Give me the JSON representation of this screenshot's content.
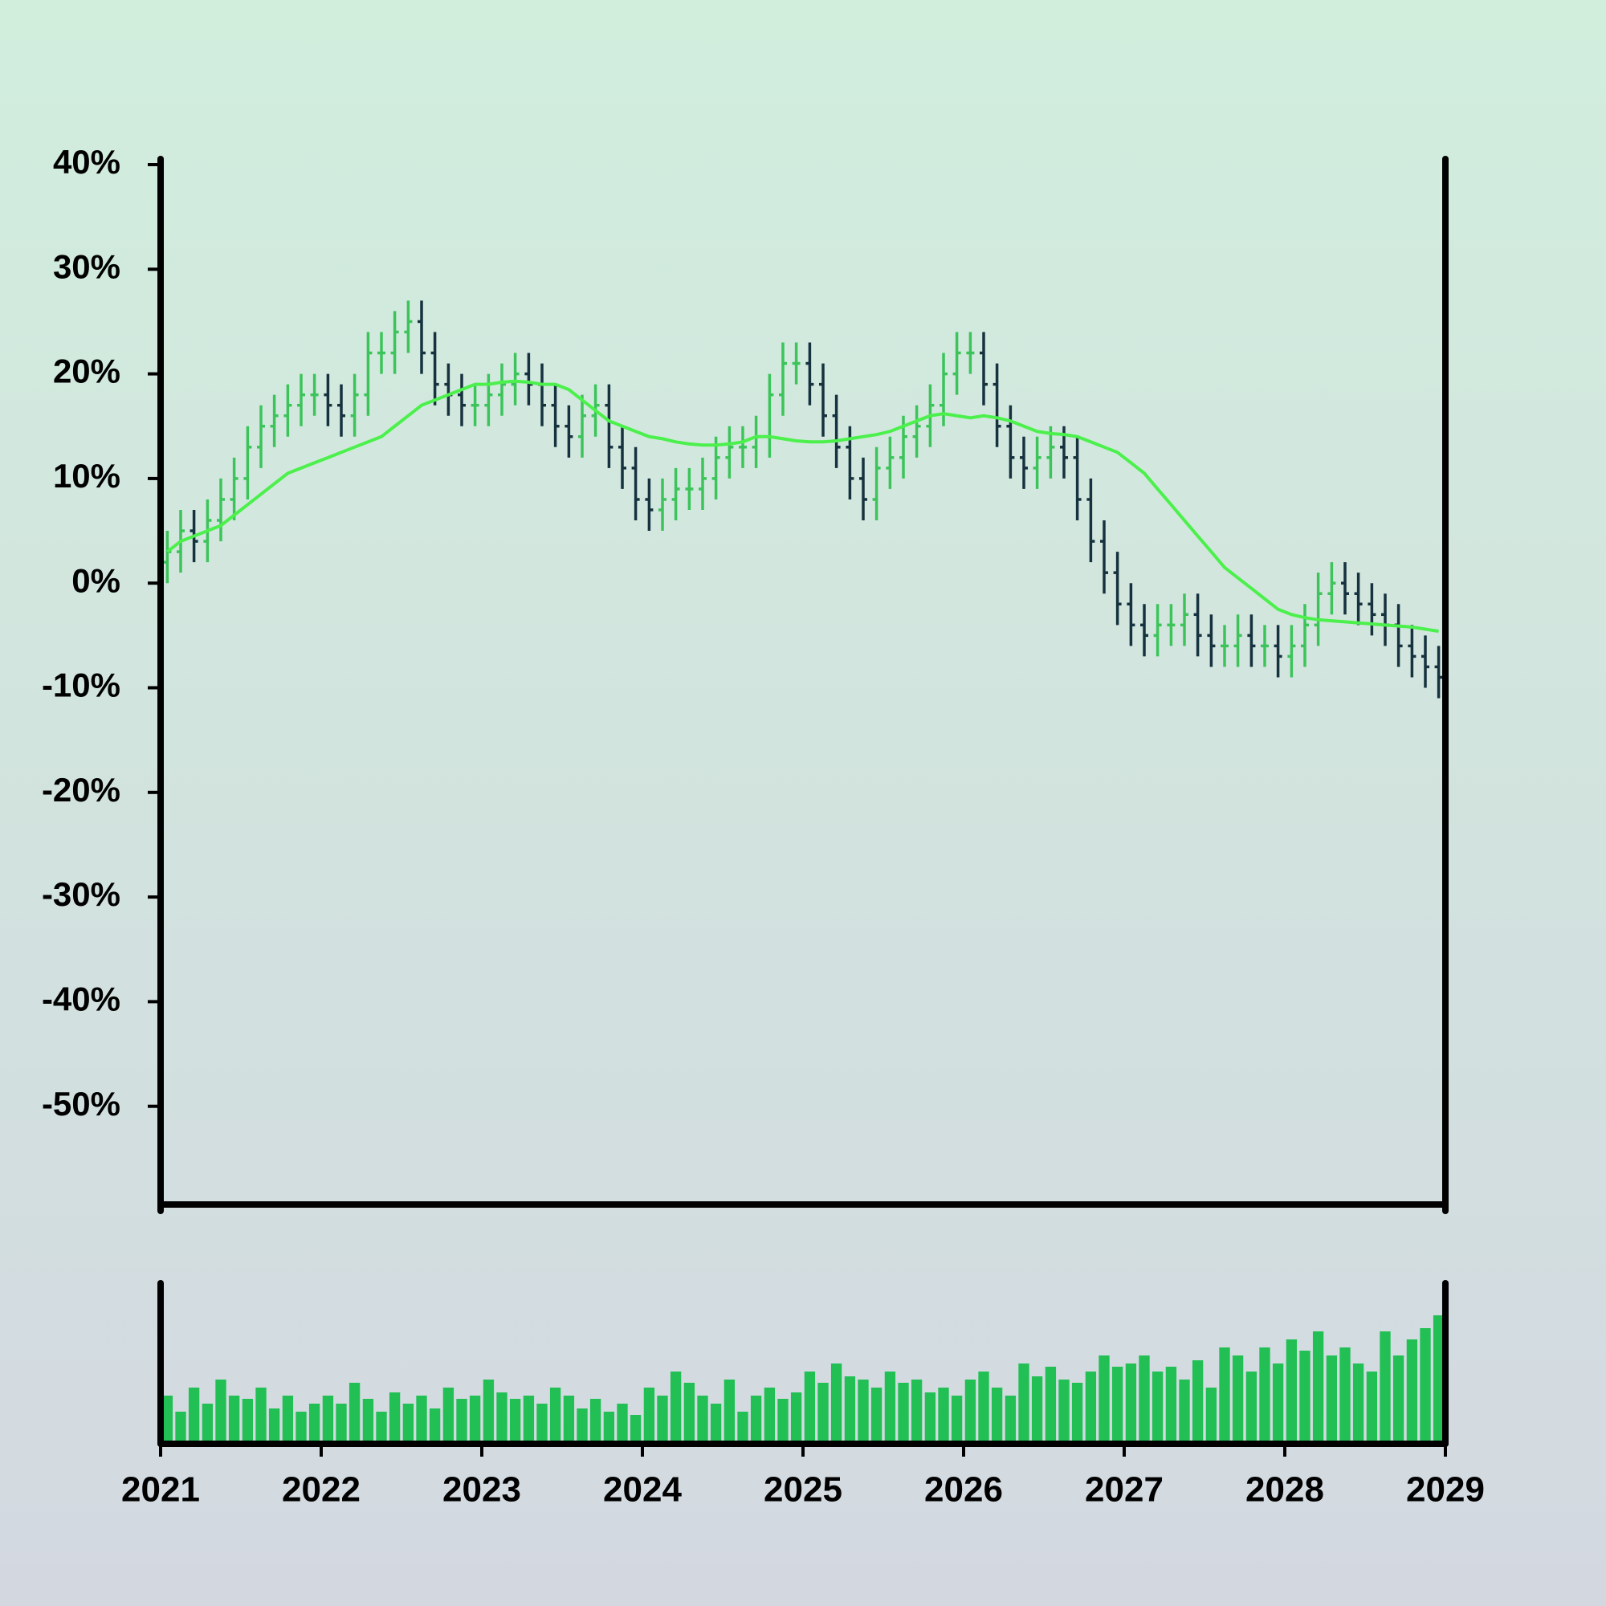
{
  "chart_data": {
    "type": "ohlc",
    "x": [
      2021.042,
      2021.125,
      2021.208,
      2021.292,
      2021.375,
      2021.458,
      2021.542,
      2021.625,
      2021.708,
      2021.792,
      2021.875,
      2021.958,
      2022.042,
      2022.125,
      2022.208,
      2022.292,
      2022.375,
      2022.458,
      2022.542,
      2022.625,
      2022.708,
      2022.792,
      2022.875,
      2022.958,
      2023.042,
      2023.125,
      2023.208,
      2023.292,
      2023.375,
      2023.458,
      2023.542,
      2023.625,
      2023.708,
      2023.792,
      2023.875,
      2023.958,
      2024.042,
      2024.125,
      2024.208,
      2024.292,
      2024.375,
      2024.458,
      2024.542,
      2024.625,
      2024.708,
      2024.792,
      2024.875,
      2024.958,
      2025.042,
      2025.125,
      2025.208,
      2025.292,
      2025.375,
      2025.458,
      2025.542,
      2025.625,
      2025.708,
      2025.792,
      2025.875,
      2025.958,
      2026.042,
      2026.125,
      2026.208,
      2026.292,
      2026.375,
      2026.458,
      2026.542,
      2026.625,
      2026.708,
      2026.792,
      2026.875,
      2026.958,
      2027.042,
      2027.125,
      2027.208,
      2027.292,
      2027.375,
      2027.458,
      2027.542,
      2027.625,
      2027.708,
      2027.792,
      2027.875,
      2027.958,
      2028.042,
      2028.125,
      2028.208,
      2028.292,
      2028.375,
      2028.458,
      2028.542,
      2028.625,
      2028.708,
      2028.792,
      2028.875,
      2028.958
    ],
    "open": [
      2,
      3,
      5,
      4,
      6,
      8,
      10,
      13,
      15,
      16,
      17,
      18,
      18,
      17,
      16,
      18,
      22,
      22,
      24,
      25,
      22,
      19,
      18,
      17,
      17,
      18,
      19,
      20,
      19,
      17,
      15,
      14,
      16,
      17,
      13,
      11,
      8,
      7,
      8,
      9,
      9,
      10,
      12,
      13,
      13,
      14,
      18,
      21,
      21,
      19,
      16,
      13,
      10,
      8,
      11,
      12,
      14,
      15,
      17,
      20,
      22,
      22,
      19,
      15,
      12,
      11,
      12,
      13,
      12,
      8,
      4,
      1,
      -2,
      -4,
      -5,
      -4,
      -4,
      -3,
      -5,
      -6,
      -6,
      -5,
      -6,
      -6,
      -7,
      -6,
      -4,
      -1,
      0,
      -1,
      -2,
      -3,
      -4,
      -6,
      -7,
      -8
    ],
    "high": [
      5,
      7,
      7,
      8,
      10,
      12,
      15,
      17,
      18,
      19,
      20,
      20,
      20,
      19,
      20,
      24,
      24,
      26,
      27,
      27,
      24,
      21,
      20,
      19,
      20,
      21,
      22,
      22,
      21,
      19,
      17,
      18,
      19,
      19,
      15,
      13,
      10,
      10,
      11,
      11,
      12,
      14,
      15,
      15,
      16,
      20,
      23,
      23,
      23,
      21,
      18,
      15,
      12,
      13,
      14,
      16,
      17,
      19,
      22,
      24,
      24,
      24,
      21,
      17,
      14,
      14,
      15,
      15,
      14,
      10,
      6,
      3,
      0,
      -2,
      -2,
      -2,
      -1,
      -1,
      -3,
      -4,
      -3,
      -3,
      -4,
      -4,
      -4,
      -2,
      1,
      2,
      2,
      1,
      0,
      -1,
      -2,
      -4,
      -5,
      -6
    ],
    "low": [
      0,
      1,
      2,
      2,
      4,
      6,
      8,
      11,
      13,
      14,
      15,
      16,
      15,
      14,
      14,
      16,
      20,
      20,
      22,
      20,
      17,
      16,
      15,
      15,
      15,
      16,
      17,
      17,
      15,
      13,
      12,
      12,
      14,
      11,
      9,
      6,
      5,
      5,
      6,
      7,
      7,
      8,
      10,
      11,
      11,
      12,
      16,
      19,
      17,
      14,
      11,
      8,
      6,
      6,
      9,
      10,
      12,
      13,
      15,
      18,
      20,
      17,
      13,
      10,
      9,
      9,
      10,
      10,
      6,
      2,
      -1,
      -4,
      -6,
      -7,
      -7,
      -6,
      -6,
      -7,
      -8,
      -8,
      -8,
      -8,
      -8,
      -9,
      -9,
      -8,
      -6,
      -3,
      -3,
      -4,
      -5,
      -6,
      -8,
      -9,
      -10,
      -11
    ],
    "close": [
      3,
      5,
      4,
      6,
      8,
      10,
      13,
      15,
      16,
      17,
      18,
      18,
      17,
      16,
      18,
      22,
      22,
      24,
      25,
      22,
      19,
      18,
      17,
      17,
      18,
      19,
      20,
      19,
      17,
      15,
      14,
      16,
      17,
      13,
      11,
      8,
      7,
      8,
      9,
      9,
      10,
      12,
      13,
      13,
      14,
      18,
      21,
      21,
      19,
      16,
      13,
      10,
      8,
      11,
      12,
      14,
      15,
      17,
      20,
      22,
      22,
      19,
      15,
      12,
      11,
      12,
      13,
      12,
      8,
      4,
      1,
      -2,
      -4,
      -5,
      -4,
      -4,
      -3,
      -5,
      -6,
      -6,
      -5,
      -6,
      -6,
      -7,
      -6,
      -4,
      -1,
      0,
      -1,
      -2,
      -3,
      -4,
      -6,
      -7,
      -8,
      -9
    ],
    "moving_average": [
      3,
      4,
      4.5,
      5,
      5.5,
      6.5,
      7.5,
      8.5,
      9.5,
      10.5,
      11,
      11.5,
      12,
      12.5,
      13,
      13.5,
      14,
      15,
      16,
      17,
      17.5,
      18,
      18.5,
      19,
      19,
      19.2,
      19.3,
      19.2,
      19,
      19,
      18.5,
      17.5,
      16.5,
      15.5,
      15,
      14.5,
      14,
      13.8,
      13.5,
      13.3,
      13.2,
      13.2,
      13.3,
      13.5,
      14,
      14,
      13.8,
      13.6,
      13.5,
      13.5,
      13.6,
      13.8,
      14,
      14.2,
      14.5,
      15,
      15.5,
      16,
      16.2,
      16,
      15.8,
      16,
      15.8,
      15.5,
      15,
      14.5,
      14.3,
      14.2,
      14,
      13.5,
      13,
      12.5,
      11.5,
      10.5,
      9,
      7.5,
      6,
      4.5,
      3,
      1.5,
      0.5,
      -0.5,
      -1.5,
      -2.5,
      -3,
      -3.3,
      -3.5,
      -3.6,
      -3.7,
      -3.8,
      -3.9,
      -4,
      -4.1,
      -4.2,
      -4.4,
      -4.6
    ],
    "volume": [
      30,
      20,
      35,
      25,
      40,
      30,
      28,
      35,
      22,
      30,
      20,
      25,
      30,
      25,
      38,
      28,
      20,
      32,
      25,
      30,
      22,
      35,
      28,
      30,
      40,
      32,
      28,
      30,
      25,
      35,
      30,
      22,
      28,
      20,
      25,
      18,
      35,
      30,
      45,
      38,
      30,
      25,
      40,
      20,
      30,
      35,
      28,
      32,
      45,
      38,
      50,
      42,
      40,
      35,
      45,
      38,
      40,
      32,
      35,
      30,
      40,
      45,
      35,
      30,
      50,
      42,
      48,
      40,
      38,
      45,
      55,
      48,
      50,
      55,
      45,
      48,
      40,
      52,
      35,
      60,
      55,
      45,
      60,
      50,
      65,
      58,
      70,
      55,
      60,
      50,
      45,
      70,
      55,
      65,
      72,
      80
    ],
    "volume_ylim": [
      0,
      100
    ],
    "up_color": "#3cc45a",
    "down_color": "#16323f",
    "ma_color": "#4cf04c",
    "volume_color": "#22bf55",
    "xlim": [
      2021,
      2029
    ],
    "xticks": [
      2021,
      2022,
      2023,
      2024,
      2025,
      2026,
      2027,
      2028,
      2029
    ],
    "ylim": [
      -60,
      40
    ],
    "yticks": [
      {
        "value": 40,
        "label": "40%"
      },
      {
        "value": 30,
        "label": "30%"
      },
      {
        "value": 20,
        "label": "20%"
      },
      {
        "value": 10,
        "label": "10%"
      },
      {
        "value": 0,
        "label": "0%"
      },
      {
        "value": -10,
        "label": "-10%"
      },
      {
        "value": -20,
        "label": "-20%"
      },
      {
        "value": -30,
        "label": "-30%"
      },
      {
        "value": -40,
        "label": "-40%"
      },
      {
        "value": -50,
        "label": "-50%"
      }
    ]
  }
}
